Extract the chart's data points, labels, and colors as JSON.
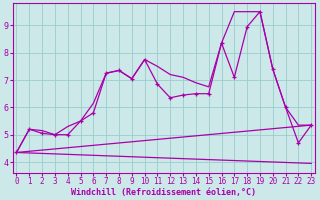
{
  "xlabel": "Windchill (Refroidissement éolien,°C)",
  "bg_color": "#cce8e8",
  "grid_color": "#99cccc",
  "line_color": "#aa00aa",
  "x_ticks": [
    0,
    1,
    2,
    3,
    4,
    5,
    6,
    7,
    8,
    9,
    10,
    11,
    12,
    13,
    14,
    15,
    16,
    17,
    18,
    19,
    20,
    21,
    22,
    23
  ],
  "y_ticks": [
    4,
    5,
    6,
    7,
    8,
    9
  ],
  "ylim": [
    3.6,
    9.8
  ],
  "xlim": [
    -0.3,
    23.3
  ],
  "main_line_x": [
    0,
    1,
    2,
    3,
    4,
    5,
    6,
    7,
    8,
    9,
    10,
    11,
    12,
    13,
    14,
    15,
    16,
    17,
    18,
    19,
    20,
    21,
    22,
    23
  ],
  "main_line_y": [
    4.35,
    5.2,
    5.05,
    5.0,
    5.0,
    5.5,
    5.8,
    7.25,
    7.35,
    7.05,
    7.75,
    6.85,
    6.35,
    6.45,
    6.5,
    6.5,
    8.35,
    7.1,
    8.95,
    9.5,
    7.4,
    6.0,
    4.7,
    5.35
  ],
  "upper_line_x": [
    0,
    1,
    2,
    3,
    4,
    5,
    6,
    7,
    8,
    9,
    10,
    11,
    12,
    13,
    14,
    15,
    16,
    17,
    18,
    19,
    20,
    21,
    22,
    23
  ],
  "upper_line_y": [
    4.35,
    5.2,
    5.15,
    5.0,
    5.3,
    5.5,
    6.15,
    7.25,
    7.35,
    7.05,
    7.75,
    7.5,
    7.2,
    7.1,
    6.9,
    6.75,
    8.35,
    9.5,
    9.5,
    9.5,
    7.4,
    6.0,
    5.35,
    5.35
  ],
  "lower_line_x": [
    0,
    23
  ],
  "lower_line_y": [
    4.35,
    3.95
  ],
  "mid_line_x": [
    0,
    23
  ],
  "mid_line_y": [
    4.35,
    5.35
  ]
}
